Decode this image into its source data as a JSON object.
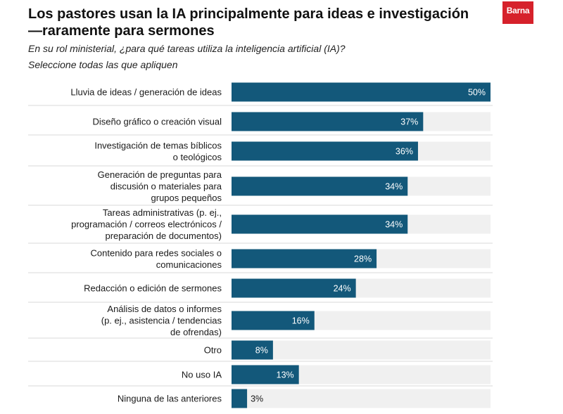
{
  "logo": {
    "text": "Barna"
  },
  "header": {
    "title": "Los pastores usan la IA principalmente para ideas e investigación—raramente para sermones",
    "subtitle1": "En su rol ministerial, ¿para qué tareas utiliza la inteligencia artificial (IA)?",
    "subtitle2": "Seleccione todas las que apliquen"
  },
  "colors": {
    "bar": "#13587a",
    "track": "#f0f0f0",
    "separator": "#d9d9d9",
    "logo": "#d6212b"
  },
  "chart_data": {
    "type": "bar",
    "orientation": "horizontal",
    "title": "Los pastores usan la IA principalmente para ideas e investigación—raramente para sermones",
    "subtitle": "En su rol ministerial, ¿para qué tareas utiliza la inteligencia artificial (IA)? Seleccione todas las que apliquen",
    "categories": [
      [
        "Lluvia de ideas / generación de ideas"
      ],
      [
        "Diseño gráfico o creación visual"
      ],
      [
        "Investigación de temas bíblicos",
        "o teológicos"
      ],
      [
        "Generación de preguntas para",
        "discusión o materiales para",
        "grupos pequeños"
      ],
      [
        "Tareas administrativas (p. ej.,",
        "programación / correos electrónicos /",
        "preparación de documentos)"
      ],
      [
        "Contenido para redes sociales o",
        "comunicaciones"
      ],
      [
        "Redacción o edición de sermones"
      ],
      [
        "Análisis de datos o informes",
        "(p. ej., asistencia / tendencias",
        "de ofrendas)"
      ],
      [
        "Otro"
      ],
      [
        "No uso IA"
      ],
      [
        "Ninguna de las anteriores"
      ]
    ],
    "values": [
      50,
      37,
      36,
      34,
      34,
      28,
      24,
      16,
      8,
      13,
      3
    ],
    "value_labels": [
      "50%",
      "37%",
      "36%",
      "34%",
      "34%",
      "28%",
      "24%",
      "16%",
      "8%",
      "13%",
      "3%"
    ],
    "xlim": [
      0,
      50
    ],
    "unit": "%",
    "grid": false,
    "legend": "none"
  }
}
